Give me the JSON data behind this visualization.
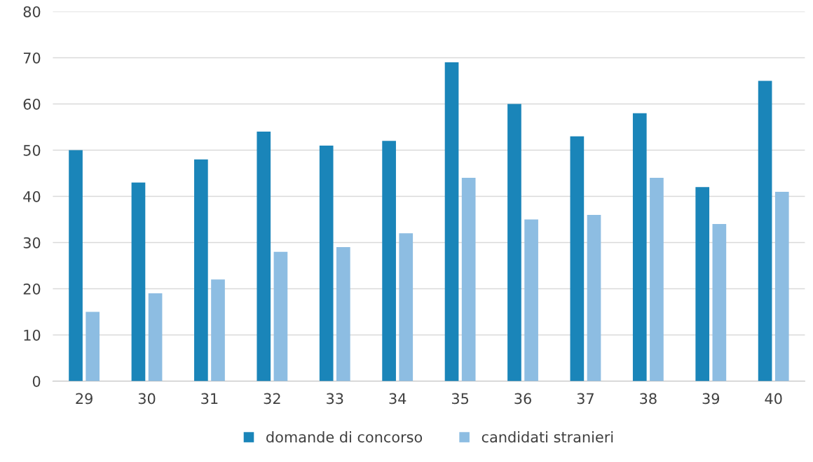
{
  "chart_data": {
    "type": "bar",
    "categories": [
      "29",
      "30",
      "31",
      "32",
      "33",
      "34",
      "35",
      "36",
      "37",
      "38",
      "39",
      "40"
    ],
    "series": [
      {
        "name": "domande di concorso",
        "color": "#1a85b9",
        "values": [
          50,
          43,
          48,
          54,
          51,
          52,
          69,
          60,
          53,
          58,
          42,
          65
        ]
      },
      {
        "name": "candidati stranieri",
        "color": "#8dbde2",
        "values": [
          15,
          19,
          22,
          28,
          29,
          32,
          44,
          35,
          36,
          44,
          34,
          41
        ]
      }
    ],
    "ylim": [
      0,
      80
    ],
    "yticks": [
      0,
      10,
      20,
      30,
      40,
      50,
      60,
      70,
      80
    ],
    "grid": "y",
    "legend": "bottom"
  }
}
